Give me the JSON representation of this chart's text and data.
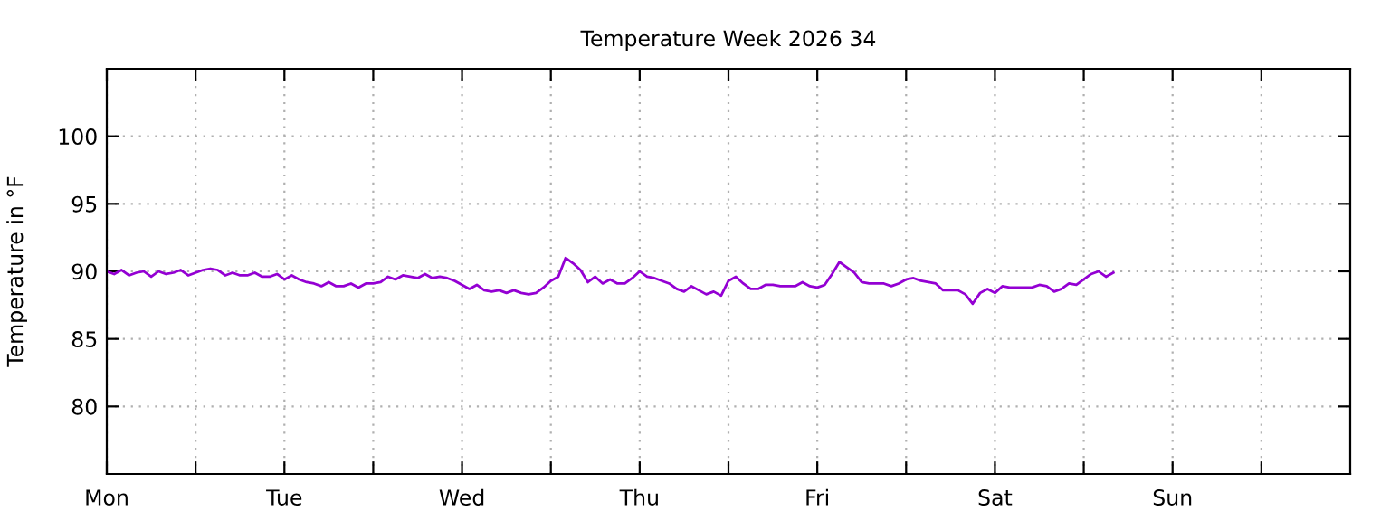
{
  "chart_data": {
    "type": "line",
    "title": "Temperature Week 2026 34",
    "ylabel": "Temperature in °F",
    "ylim": [
      75,
      105
    ],
    "yticks": [
      80,
      85,
      90,
      95,
      100
    ],
    "grid": true,
    "legend": false,
    "marker": "none",
    "line_style": "solid",
    "categories": [
      "Mon",
      null,
      null,
      null,
      null,
      null,
      null,
      null,
      null,
      null,
      null,
      null,
      null,
      null,
      null,
      null,
      null,
      null,
      null,
      null,
      null,
      null,
      null,
      null,
      "Tue",
      null,
      null,
      null,
      null,
      null,
      null,
      null,
      null,
      null,
      null,
      null,
      null,
      null,
      null,
      null,
      null,
      null,
      null,
      null,
      null,
      null,
      null,
      null,
      "Wed",
      null,
      null,
      null,
      null,
      null,
      null,
      null,
      null,
      null,
      null,
      null,
      null,
      null,
      null,
      null,
      null,
      null,
      null,
      null,
      null,
      null,
      null,
      null,
      "Thu",
      null,
      null,
      null,
      null,
      null,
      null,
      null,
      null,
      null,
      null,
      null,
      null,
      null,
      null,
      null,
      null,
      null,
      null,
      null,
      null,
      null,
      null,
      null,
      "Fri",
      null,
      null,
      null,
      null,
      null,
      null,
      null,
      null,
      null,
      null,
      null,
      null,
      null,
      null,
      null,
      null,
      null,
      null,
      null,
      null,
      null,
      null,
      null,
      "Sat",
      null,
      null,
      null,
      null,
      null,
      null,
      null,
      null,
      null,
      null,
      null,
      null,
      null,
      null,
      null,
      null,
      null,
      null,
      null,
      null,
      null,
      null,
      null,
      "Sun",
      null,
      null,
      null,
      null,
      null,
      null,
      null,
      null,
      null,
      null,
      null,
      null,
      null,
      null,
      null,
      null,
      null,
      null,
      null,
      null,
      null,
      null,
      null,
      null
    ],
    "series": [
      {
        "color": "#9400d3",
        "values": [
          90.0,
          89.8,
          90.1,
          89.7,
          89.9,
          90.0,
          89.6,
          90.0,
          89.8,
          89.9,
          90.1,
          89.7,
          89.9,
          90.1,
          90.2,
          90.1,
          89.7,
          89.9,
          89.7,
          89.7,
          89.9,
          89.6,
          89.6,
          89.8,
          89.4,
          89.7,
          89.4,
          89.2,
          89.1,
          88.9,
          89.2,
          88.9,
          88.9,
          89.1,
          88.8,
          89.1,
          89.1,
          89.2,
          89.6,
          89.4,
          89.7,
          89.6,
          89.5,
          89.8,
          89.5,
          89.6,
          89.5,
          89.3,
          89.0,
          88.7,
          89.0,
          88.6,
          88.5,
          88.6,
          88.4,
          88.6,
          88.4,
          88.3,
          88.4,
          88.8,
          89.3,
          89.6,
          91.0,
          90.6,
          90.1,
          89.2,
          89.6,
          89.1,
          89.4,
          89.1,
          89.1,
          89.5,
          90.0,
          89.6,
          89.5,
          89.3,
          89.1,
          88.7,
          88.5,
          88.9,
          88.6,
          88.3,
          88.5,
          88.2,
          89.3,
          89.6,
          89.1,
          88.7,
          88.7,
          89.0,
          89.0,
          88.9,
          88.9,
          88.9,
          89.2,
          88.9,
          88.8,
          89.0,
          89.8,
          90.7,
          90.3,
          89.9,
          89.2,
          89.1,
          89.1,
          89.1,
          88.9,
          89.1,
          89.4,
          89.5,
          89.3,
          89.2,
          89.1,
          88.6,
          88.6,
          88.6,
          88.3,
          87.6,
          88.4,
          88.7,
          88.4,
          88.9,
          88.8,
          88.8,
          88.8,
          88.8,
          89.0,
          88.9,
          88.5,
          88.7,
          89.1,
          89.0,
          89.4,
          89.8,
          90.0,
          89.6,
          89.9,
          null,
          null,
          null,
          null,
          null,
          null,
          null,
          null,
          null,
          null,
          null,
          null,
          null,
          null,
          null,
          null,
          null,
          null,
          null,
          null,
          null,
          null,
          null,
          null,
          null,
          null,
          null,
          null,
          null,
          null,
          null,
          null
        ]
      }
    ]
  }
}
